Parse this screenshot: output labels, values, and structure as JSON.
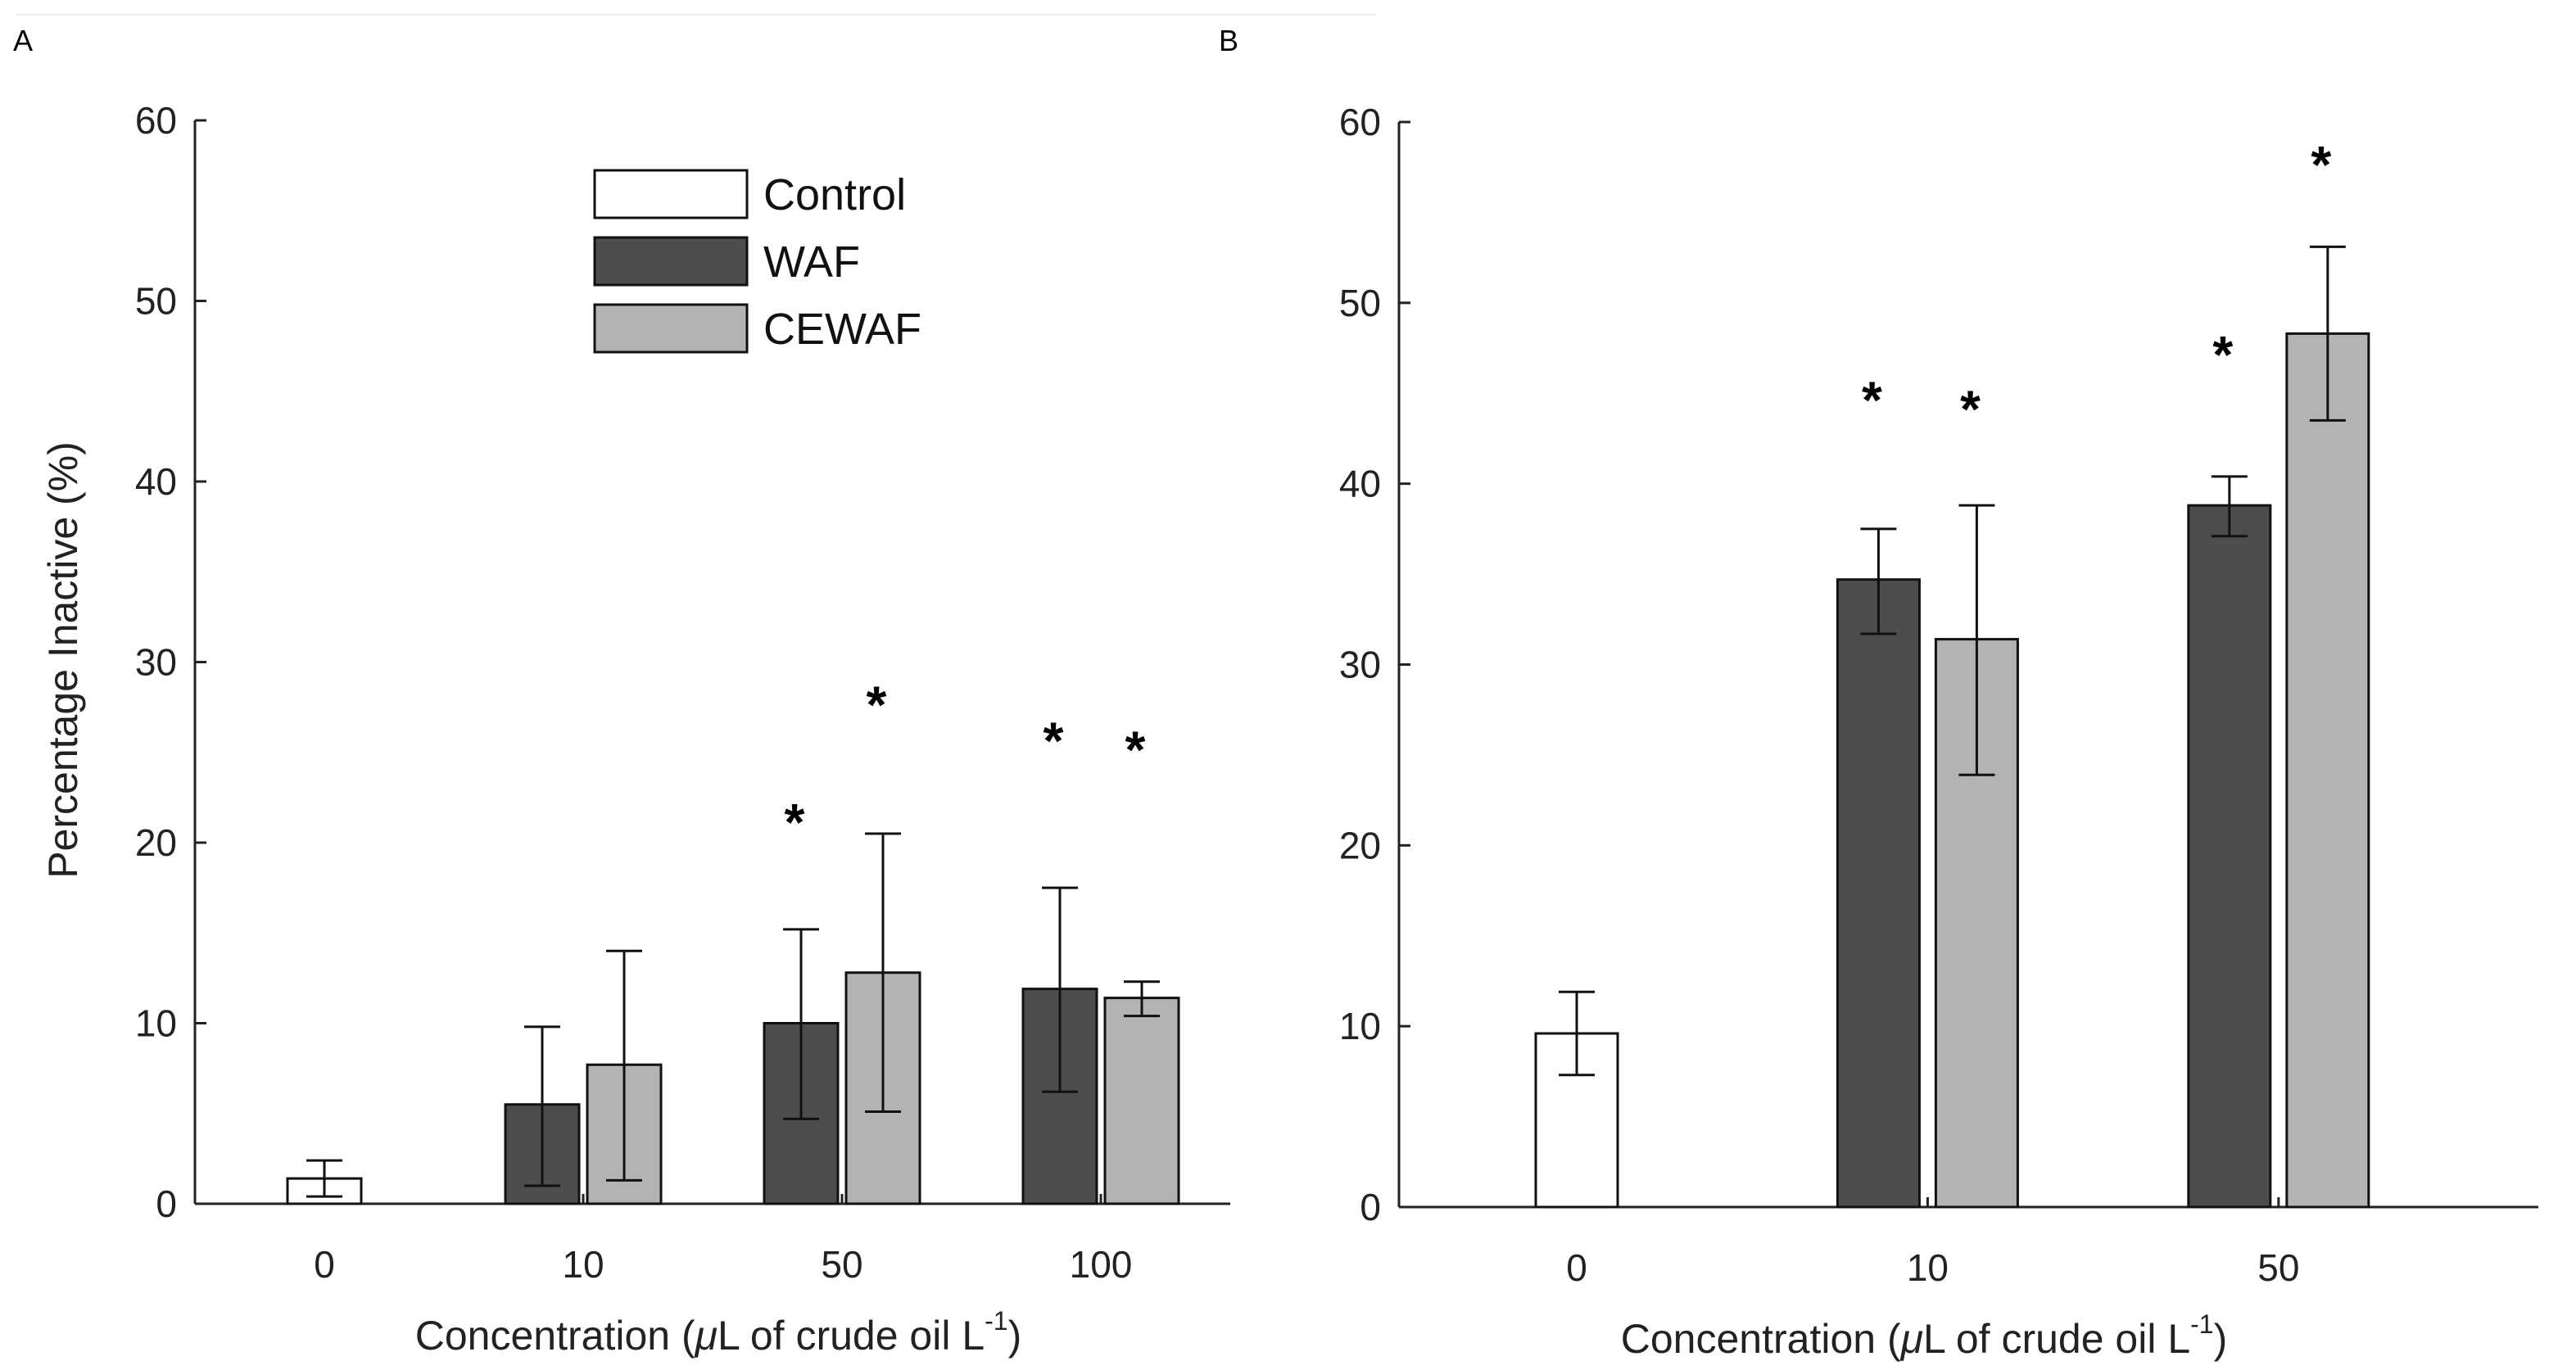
{
  "colors": {
    "Control": "#ffffff",
    "WAF": "#4d4d4d",
    "CEWAF": "#b3b3b3",
    "axis": "#222222"
  },
  "chart_data": [
    {
      "panel": "A",
      "type": "bar",
      "title": "",
      "xlabel": "Concentration (μL of crude oil L-1)",
      "xlabel_main": "Concentration (",
      "xlabel_mu": "μ",
      "xlabel_rest": "L of crude oil L",
      "xlabel_sup": "-1",
      "xlabel_end": ")",
      "ylabel": "Percentage Inactive (%)",
      "ylim": [
        0,
        60
      ],
      "yticks": [
        0,
        10,
        20,
        30,
        40,
        50,
        60
      ],
      "categories": [
        "0",
        "10",
        "50",
        "100"
      ],
      "legend": {
        "position": "top-center",
        "entries": [
          "Control",
          "WAF",
          "CEWAF"
        ]
      },
      "series": [
        {
          "name": "Control",
          "values": [
            1.4,
            null,
            null,
            null
          ],
          "err_low": [
            0.4,
            null,
            null,
            null
          ],
          "err_high": [
            2.4,
            null,
            null,
            null
          ],
          "significant_marker_y": [
            null,
            null,
            null,
            null
          ]
        },
        {
          "name": "WAF",
          "values": [
            null,
            5.5,
            10.0,
            11.9
          ],
          "err_low": [
            null,
            1.0,
            4.7,
            6.2
          ],
          "err_high": [
            null,
            9.8,
            15.2,
            17.5
          ],
          "significant_marker_y": [
            null,
            null,
            21.5,
            26.0
          ]
        },
        {
          "name": "CEWAF",
          "values": [
            null,
            7.7,
            12.8,
            11.4
          ],
          "err_low": [
            null,
            1.3,
            5.1,
            10.4
          ],
          "err_high": [
            null,
            14.0,
            20.5,
            12.3
          ],
          "significant_marker_y": [
            null,
            null,
            28.0,
            25.5
          ]
        }
      ],
      "marker_symbol": "*"
    },
    {
      "panel": "B",
      "type": "bar",
      "title": "",
      "xlabel": "Concentration (μL of crude oil L-1)",
      "xlabel_main": "Concentration (",
      "xlabel_mu": "μ",
      "xlabel_rest": "L of crude oil L",
      "xlabel_sup": "-1",
      "xlabel_end": ")",
      "ylabel": "",
      "ylim": [
        0,
        60
      ],
      "yticks": [
        0,
        10,
        20,
        30,
        40,
        50,
        60
      ],
      "categories": [
        "0",
        "10",
        "50"
      ],
      "series": [
        {
          "name": "Control",
          "values": [
            9.6,
            null,
            null
          ],
          "err_low": [
            7.3,
            null,
            null
          ],
          "err_high": [
            11.9,
            null,
            null
          ],
          "significant_marker_y": [
            null,
            null,
            null
          ]
        },
        {
          "name": "WAF",
          "values": [
            null,
            34.7,
            38.8
          ],
          "err_low": [
            null,
            31.7,
            37.1
          ],
          "err_high": [
            null,
            37.5,
            40.4
          ],
          "significant_marker_y": [
            null,
            45.0,
            47.5
          ]
        },
        {
          "name": "CEWAF",
          "values": [
            null,
            31.4,
            48.3
          ],
          "err_low": [
            null,
            23.9,
            43.5
          ],
          "err_high": [
            null,
            38.8,
            53.1
          ],
          "significant_marker_y": [
            null,
            44.5,
            58.0
          ]
        }
      ],
      "marker_symbol": "*"
    }
  ]
}
